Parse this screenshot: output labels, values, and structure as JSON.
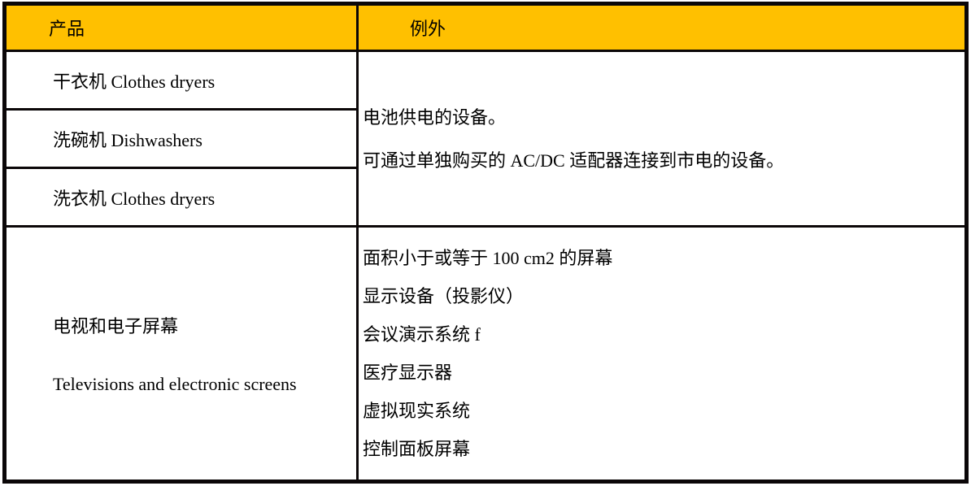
{
  "colors": {
    "header_background": "#FFC000",
    "border": "#0B0708",
    "text": "#000000",
    "page_background": "#FFFFFF"
  },
  "table": {
    "header": {
      "product": "产品",
      "exception": "例外"
    },
    "appliance_rows": [
      {
        "label": "干衣机 Clothes dryers"
      },
      {
        "label": "洗碗机 Dishwashers"
      },
      {
        "label": "洗衣机 Clothes dryers"
      }
    ],
    "appliance_exception_lines": [
      "电池供电的设备。",
      "可通过单独购买的 AC/DC 适配器连接到市电的设备。"
    ],
    "tv_row": {
      "label_zh": "电视和电子屏幕",
      "label_en": "Televisions and electronic screens",
      "exception_lines": [
        "面积小于或等于 100 cm2 的屏幕",
        "显示设备（投影仪）",
        "会议演示系统 f",
        "医疗显示器",
        "虚拟现实系统",
        "控制面板屏幕"
      ]
    }
  }
}
